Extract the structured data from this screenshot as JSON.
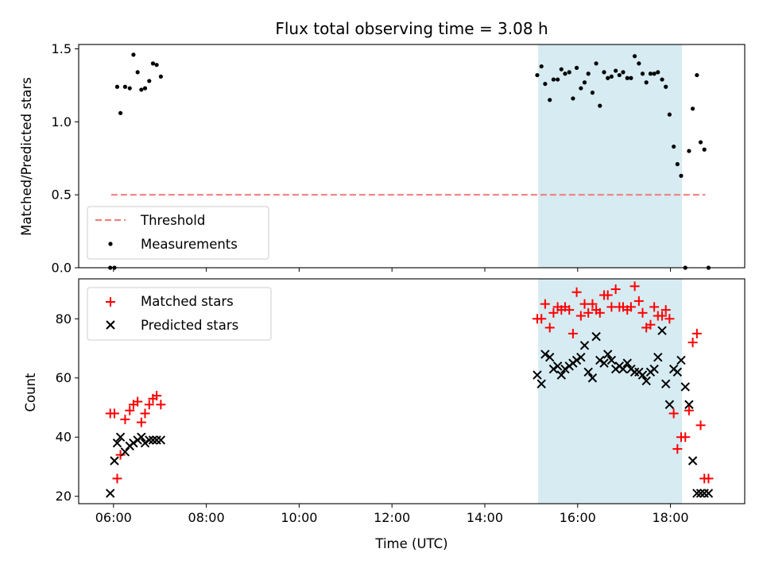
{
  "chart_data": [
    {
      "type": "scatter",
      "title": "Flux total observing time = 3.08 h",
      "ylabel": "Matched/Predicted stars",
      "xlabel": "",
      "xlim": [
        5.25,
        19.6
      ],
      "ylim": [
        0.0,
        1.53
      ],
      "x_ticks": [
        6,
        8,
        10,
        12,
        14,
        16,
        18
      ],
      "x_tick_labels": [],
      "y_ticks": [
        0.0,
        0.5,
        1.0,
        1.5
      ],
      "y_tick_labels": [
        "0.0",
        "0.5",
        "1.0",
        "1.5"
      ],
      "shaded_region": {
        "x_start": 15.15,
        "x_end": 18.25,
        "color": "#add8e6"
      },
      "threshold": {
        "name": "Threshold",
        "value": 0.5,
        "x_start": 5.95,
        "x_end": 18.75,
        "color": "#f08080"
      },
      "legend": {
        "placement": "lower-left",
        "entries": [
          "Threshold",
          "Measurements"
        ]
      },
      "series": [
        {
          "name": "Measurements",
          "marker": "dot",
          "color": "#000000",
          "x": [
            5.93,
            6.02,
            6.08,
            6.15,
            6.25,
            6.35,
            6.43,
            6.52,
            6.6,
            6.68,
            6.77,
            6.85,
            6.93,
            7.02,
            15.13,
            15.22,
            15.3,
            15.4,
            15.48,
            15.57,
            15.65,
            15.73,
            15.82,
            15.9,
            15.98,
            16.07,
            16.15,
            16.23,
            16.32,
            16.4,
            16.48,
            16.57,
            16.65,
            16.73,
            16.82,
            16.9,
            16.98,
            17.07,
            17.15,
            17.23,
            17.32,
            17.4,
            17.48,
            17.57,
            17.65,
            17.73,
            17.82,
            17.9,
            17.98,
            18.07,
            18.15,
            18.23,
            18.32,
            18.4,
            18.48,
            18.57,
            18.65,
            18.73,
            18.82
          ],
          "y": [
            0.0,
            0.0,
            1.24,
            1.06,
            1.24,
            1.23,
            1.46,
            1.34,
            1.22,
            1.23,
            1.28,
            1.4,
            1.39,
            1.31,
            1.32,
            1.38,
            1.26,
            1.15,
            1.29,
            1.29,
            1.36,
            1.33,
            1.34,
            1.16,
            1.37,
            1.23,
            1.27,
            1.33,
            1.2,
            1.4,
            1.11,
            1.34,
            1.3,
            1.31,
            1.35,
            1.32,
            1.34,
            1.3,
            1.3,
            1.45,
            1.4,
            1.33,
            1.27,
            1.33,
            1.33,
            1.34,
            1.29,
            1.24,
            1.05,
            0.83,
            0.71,
            0.63,
            0.0,
            0.8,
            1.09,
            1.32,
            0.86,
            0.81,
            0.0
          ]
        }
      ]
    },
    {
      "type": "scatter",
      "title": "",
      "ylabel": "Count",
      "xlabel": "Time (UTC)",
      "xlim": [
        5.25,
        19.6
      ],
      "ylim": [
        17.5,
        93.5
      ],
      "x_ticks": [
        6,
        8,
        10,
        12,
        14,
        16,
        18
      ],
      "x_tick_labels": [
        "06:00",
        "08:00",
        "10:00",
        "12:00",
        "14:00",
        "16:00",
        "18:00"
      ],
      "y_ticks": [
        20,
        40,
        60,
        80
      ],
      "y_tick_labels": [
        "20",
        "40",
        "60",
        "80"
      ],
      "shaded_region": {
        "x_start": 15.15,
        "x_end": 18.25,
        "color": "#add8e6"
      },
      "legend": {
        "placement": "top-left",
        "entries": [
          "Matched stars",
          "Predicted stars"
        ]
      },
      "series": [
        {
          "name": "Matched stars",
          "marker": "plus",
          "color": "#ff0000",
          "x": [
            5.93,
            6.02,
            6.08,
            6.15,
            6.25,
            6.35,
            6.43,
            6.52,
            6.6,
            6.68,
            6.77,
            6.85,
            6.93,
            7.02,
            15.13,
            15.22,
            15.3,
            15.4,
            15.48,
            15.57,
            15.65,
            15.73,
            15.82,
            15.9,
            15.98,
            16.07,
            16.15,
            16.23,
            16.32,
            16.4,
            16.48,
            16.57,
            16.65,
            16.73,
            16.82,
            16.9,
            16.98,
            17.07,
            17.15,
            17.23,
            17.32,
            17.4,
            17.48,
            17.57,
            17.65,
            17.73,
            17.82,
            17.9,
            17.98,
            18.07,
            18.15,
            18.23,
            18.32,
            18.4,
            18.48,
            18.57,
            18.65,
            18.73,
            18.82
          ],
          "y": [
            48,
            48,
            26,
            34,
            46,
            49,
            51,
            52,
            45,
            48,
            51,
            53,
            54,
            51,
            80,
            80,
            85,
            77,
            82,
            84,
            83,
            84,
            83,
            75,
            89,
            81,
            85,
            82,
            85,
            83,
            82,
            88,
            88,
            84,
            90,
            84,
            84,
            83,
            84,
            91,
            86,
            82,
            77,
            78,
            84,
            81,
            81,
            83,
            80,
            48,
            36,
            40,
            40,
            49,
            72,
            75,
            44,
            26,
            26
          ]
        },
        {
          "name": "Predicted stars",
          "marker": "x",
          "color": "#000000",
          "x": [
            5.93,
            6.02,
            6.08,
            6.15,
            6.25,
            6.35,
            6.43,
            6.52,
            6.6,
            6.68,
            6.77,
            6.85,
            6.93,
            7.02,
            15.13,
            15.22,
            15.3,
            15.4,
            15.48,
            15.57,
            15.65,
            15.73,
            15.82,
            15.9,
            15.98,
            16.07,
            16.15,
            16.23,
            16.32,
            16.4,
            16.48,
            16.57,
            16.65,
            16.73,
            16.82,
            16.9,
            16.98,
            17.07,
            17.15,
            17.23,
            17.32,
            17.4,
            17.48,
            17.57,
            17.65,
            17.73,
            17.82,
            17.9,
            17.98,
            18.07,
            18.15,
            18.23,
            18.32,
            18.4,
            18.48,
            18.57,
            18.65,
            18.73,
            18.82
          ],
          "y": [
            21,
            32,
            38,
            40,
            35,
            37,
            38,
            39,
            40,
            38,
            39,
            39,
            39,
            39,
            61,
            58,
            68,
            67,
            63,
            64,
            61,
            63,
            64,
            65,
            66,
            67,
            71,
            62,
            60,
            74,
            66,
            65,
            68,
            66,
            63,
            64,
            63,
            65,
            63,
            62,
            62,
            61,
            59,
            62,
            63,
            67,
            76,
            58,
            51,
            63,
            62,
            66,
            57,
            51,
            32,
            21,
            21,
            21,
            21
          ]
        }
      ]
    }
  ]
}
